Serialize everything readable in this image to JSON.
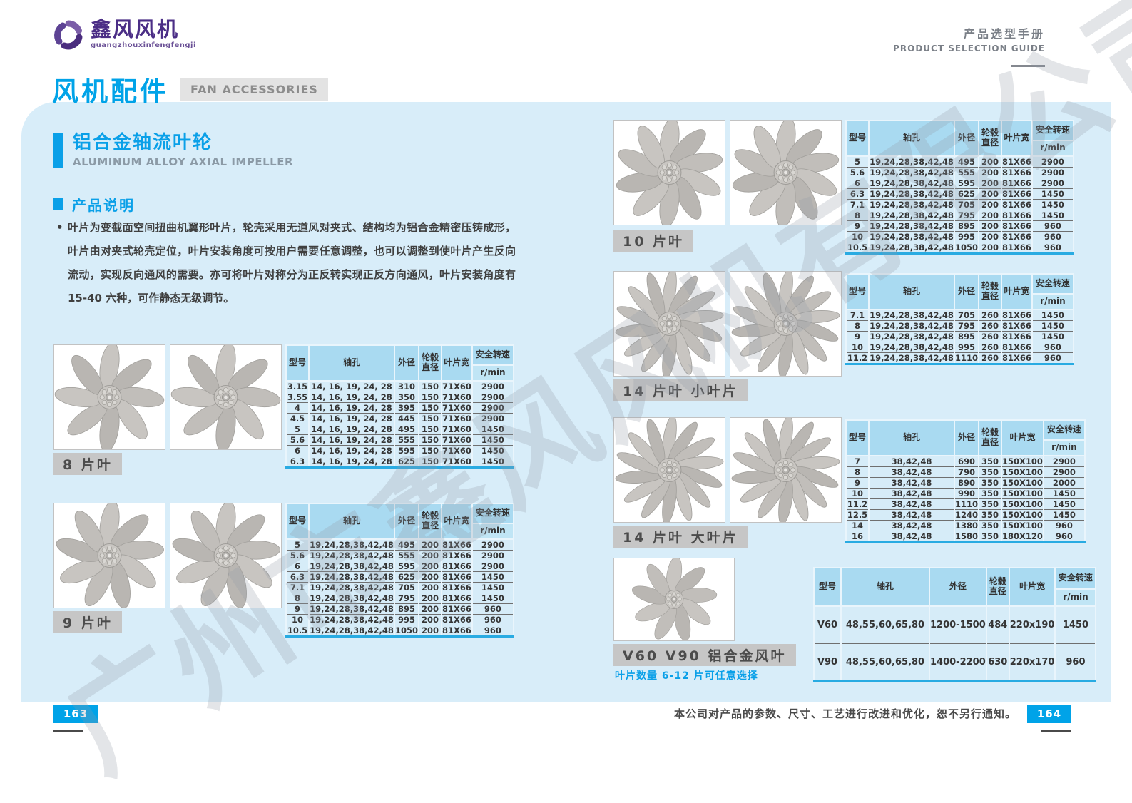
{
  "header": {
    "brand": "鑫风风机",
    "brand_tagline": "guangzhouxinfengfengji",
    "doc_title_cn": "产品选型手册",
    "doc_title_en": "PRODUCT SELECTION GUIDE"
  },
  "page": {
    "title_cn": "风机配件",
    "title_en": "FAN ACCESSORIES"
  },
  "section": {
    "title_cn": "铝合金轴流叶轮",
    "title_en": "ALUMINUM ALLOY AXIAL IMPELLER",
    "desc_heading": "产品说明",
    "desc_text": "叶片为变截面空间扭曲机翼形叶片，轮壳采用无道风对夹式、结构均为铝合金精密压铸成形，叶片由对夹式轮壳定位，叶片安装角度可按用户需要任意调整，也可以调整到使叶片产生反向流动，实现反向通风的需要。亦可将叶片对称分为正反转实现正反方向通风，叶片安装角度有 15-40 六种，可作静态无级调节。"
  },
  "table_headers": {
    "model": "型号",
    "bore": "轴孔",
    "od": "外径",
    "hub_line1": "轮毂",
    "hub_line2": "直径",
    "width": "叶片宽",
    "speed": "安全转速",
    "speed_unit": "r/min"
  },
  "figures": {
    "f8": {
      "label": "8 片叶",
      "blades": 8
    },
    "f9": {
      "label": "9 片叶",
      "blades": 9
    },
    "f10": {
      "label": "10 片叶",
      "blades": 10
    },
    "f14s": {
      "label": "14 片叶  小叶片",
      "blades": 14
    },
    "f14b": {
      "label": "14 片叶  大叶片",
      "blades": 14
    },
    "v60": {
      "label": "V60 V90 铝合金风叶",
      "blades": 9,
      "note": "叶片数量 6-12 片可任意选择"
    }
  },
  "tables": {
    "t8": {
      "rows": [
        [
          "3.15",
          "14, 16, 19, 24, 28",
          "310",
          "150",
          "71X60",
          "2900"
        ],
        [
          "3.55",
          "14, 16, 19, 24, 28",
          "350",
          "150",
          "71X60",
          "2900"
        ],
        [
          "4",
          "14, 16, 19, 24, 28",
          "395",
          "150",
          "71X60",
          "2900"
        ],
        [
          "4.5",
          "14, 16, 19, 24, 28",
          "445",
          "150",
          "71X60",
          "2900"
        ],
        [
          "5",
          "14, 16, 19, 24, 28",
          "495",
          "150",
          "71X60",
          "1450"
        ],
        [
          "5.6",
          "14, 16, 19, 24, 28",
          "555",
          "150",
          "71X60",
          "1450"
        ],
        [
          "6",
          "14, 16, 19, 24, 28",
          "595",
          "150",
          "71X60",
          "1450"
        ],
        [
          "6.3",
          "14, 16, 19, 24, 28",
          "625",
          "150",
          "71X60",
          "1450"
        ]
      ]
    },
    "t9": {
      "rows": [
        [
          "5",
          "19,24,28,38,42,48",
          "495",
          "200",
          "81X66",
          "2900"
        ],
        [
          "5.6",
          "19,24,28,38,42,48",
          "555",
          "200",
          "81X66",
          "2900"
        ],
        [
          "6",
          "19,24,28,38,42,48",
          "595",
          "200",
          "81X66",
          "2900"
        ],
        [
          "6.3",
          "19,24,28,38,42,48",
          "625",
          "200",
          "81X66",
          "1450"
        ],
        [
          "7.1",
          "19,24,28,38,42,48",
          "705",
          "200",
          "81X66",
          "1450"
        ],
        [
          "8",
          "19,24,28,38,42,48",
          "795",
          "200",
          "81X66",
          "1450"
        ],
        [
          "9",
          "19,24,28,38,42,48",
          "895",
          "200",
          "81X66",
          "960"
        ],
        [
          "10",
          "19,24,28,38,42,48",
          "995",
          "200",
          "81X66",
          "960"
        ],
        [
          "10.5",
          "19,24,28,38,42,48",
          "1050",
          "200",
          "81X66",
          "960"
        ]
      ]
    },
    "t10": {
      "rows": [
        [
          "5",
          "19,24,28,38,42,48",
          "495",
          "200",
          "81X66",
          "2900"
        ],
        [
          "5.6",
          "19,24,28,38,42,48",
          "555",
          "200",
          "81X66",
          "2900"
        ],
        [
          "6",
          "19,24,28,38,42,48",
          "595",
          "200",
          "81X66",
          "2900"
        ],
        [
          "6.3",
          "19,24,28,38,42,48",
          "625",
          "200",
          "81X66",
          "1450"
        ],
        [
          "7.1",
          "19,24,28,38,42,48",
          "705",
          "200",
          "81X66",
          "1450"
        ],
        [
          "8",
          "19,24,28,38,42,48",
          "795",
          "200",
          "81X66",
          "1450"
        ],
        [
          "9",
          "19,24,28,38,42,48",
          "895",
          "200",
          "81X66",
          "960"
        ],
        [
          "10",
          "19,24,28,38,42,48",
          "995",
          "200",
          "81X66",
          "960"
        ],
        [
          "10.5",
          "19,24,28,38,42,48",
          "1050",
          "200",
          "81X66",
          "960"
        ]
      ]
    },
    "t14s": {
      "rows": [
        [
          "7.1",
          "19,24,28,38,42,48",
          "705",
          "260",
          "81X66",
          "1450"
        ],
        [
          "8",
          "19,24,28,38,42,48",
          "795",
          "260",
          "81X66",
          "1450"
        ],
        [
          "9",
          "19,24,28,38,42,48",
          "895",
          "260",
          "81X66",
          "1450"
        ],
        [
          "10",
          "19,24,28,38,42,48",
          "995",
          "260",
          "81X66",
          "960"
        ],
        [
          "11.2",
          "19,24,28,38,42,48",
          "1110",
          "260",
          "81X66",
          "960"
        ]
      ]
    },
    "t14b": {
      "rows": [
        [
          "7",
          "38,42,48",
          "690",
          "350",
          "150X100",
          "2900"
        ],
        [
          "8",
          "38,42,48",
          "790",
          "350",
          "150X100",
          "2900"
        ],
        [
          "9",
          "38,42,48",
          "890",
          "350",
          "150X100",
          "2000"
        ],
        [
          "10",
          "38,42,48",
          "990",
          "350",
          "150X100",
          "1450"
        ],
        [
          "11.2",
          "38,42,48",
          "1110",
          "350",
          "150X100",
          "1450"
        ],
        [
          "12.5",
          "38,42,48",
          "1240",
          "350",
          "150X100",
          "1450"
        ],
        [
          "14",
          "38,42,48",
          "1380",
          "350",
          "150X100",
          "960"
        ],
        [
          "16",
          "38,42,48",
          "1580",
          "350",
          "180X120",
          "960"
        ]
      ]
    },
    "tv60": {
      "rows": [
        [
          "V60",
          "48,55,60,65,80",
          "1200-1500",
          "484",
          "220x190",
          "1450"
        ],
        [
          "V90",
          "48,55,60,65,80",
          "1400-2200",
          "630",
          "220x170",
          "960"
        ]
      ]
    }
  },
  "watermark": "广州市鑫风风机有限公司",
  "footer": {
    "page_left": "163",
    "page_right": "164",
    "note": "本公司对产品的参数、尺寸、工艺进行改进和优化，恕不另行通知。"
  }
}
